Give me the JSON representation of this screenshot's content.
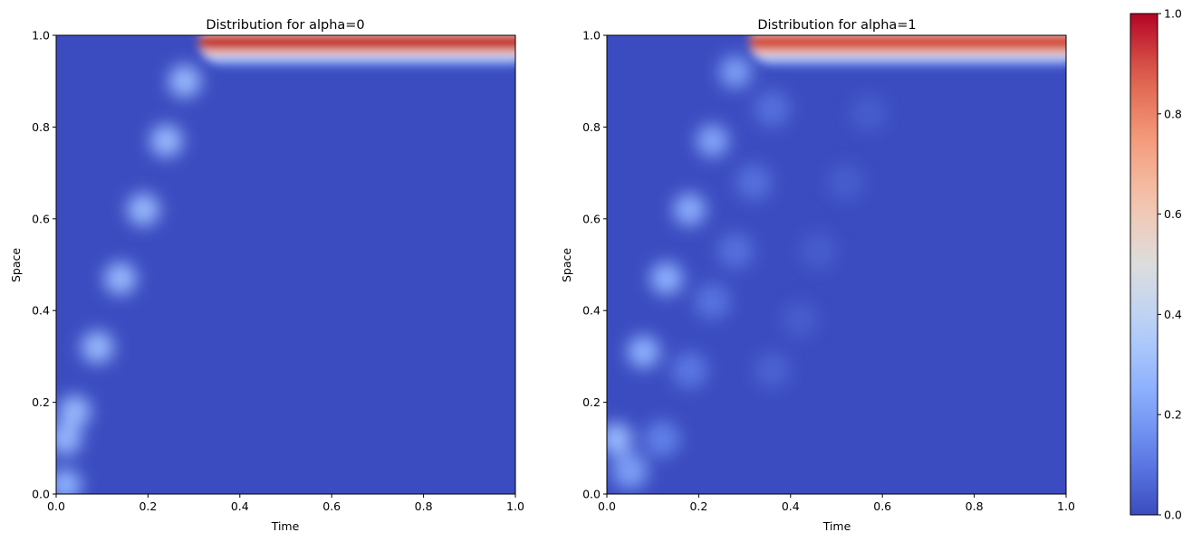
{
  "chart_data": [
    {
      "type": "heatmap",
      "title": "Distribution for alpha=0",
      "xlabel": "Time",
      "ylabel": "Space",
      "xlim": [
        0.0,
        1.0
      ],
      "ylim": [
        0.0,
        1.0
      ],
      "xticks": [
        "0.0",
        "0.2",
        "0.4",
        "0.6",
        "0.8",
        "1.0"
      ],
      "yticks": [
        "0.0",
        "0.2",
        "0.4",
        "0.6",
        "0.8",
        "1.0"
      ],
      "colormap": "coolwarm",
      "vmin": 0.0,
      "vmax": 1.0,
      "grid": false,
      "ridge_points": [
        {
          "x": 0.02,
          "y": 0.02,
          "value": 0.25
        },
        {
          "x": 0.02,
          "y": 0.12,
          "value": 0.27
        },
        {
          "x": 0.04,
          "y": 0.18,
          "value": 0.28
        },
        {
          "x": 0.09,
          "y": 0.32,
          "value": 0.28
        },
        {
          "x": 0.14,
          "y": 0.47,
          "value": 0.28
        },
        {
          "x": 0.19,
          "y": 0.62,
          "value": 0.28
        },
        {
          "x": 0.24,
          "y": 0.77,
          "value": 0.28
        },
        {
          "x": 0.28,
          "y": 0.9,
          "value": 0.28
        }
      ],
      "top_band": {
        "x_start": 0.31,
        "x_end": 1.0,
        "y_center": 0.985,
        "peak_value": 1.0
      }
    },
    {
      "type": "heatmap",
      "title": "Distribution for alpha=1",
      "xlabel": "Time",
      "ylabel": "Space",
      "xlim": [
        0.0,
        1.0
      ],
      "ylim": [
        0.0,
        1.0
      ],
      "xticks": [
        "0.0",
        "0.2",
        "0.4",
        "0.6",
        "0.8",
        "1.0"
      ],
      "yticks": [
        "0.0",
        "0.2",
        "0.4",
        "0.6",
        "0.8",
        "1.0"
      ],
      "colormap": "coolwarm",
      "vmin": 0.0,
      "vmax": 1.0,
      "grid": false,
      "ridge_points": [
        {
          "x": 0.02,
          "y": 0.12,
          "value": 0.28
        },
        {
          "x": 0.08,
          "y": 0.31,
          "value": 0.25
        },
        {
          "x": 0.13,
          "y": 0.47,
          "value": 0.25
        },
        {
          "x": 0.18,
          "y": 0.62,
          "value": 0.24
        },
        {
          "x": 0.23,
          "y": 0.77,
          "value": 0.22
        },
        {
          "x": 0.28,
          "y": 0.92,
          "value": 0.2
        }
      ],
      "faint_points": [
        {
          "x": 0.05,
          "y": 0.05,
          "value": 0.2
        },
        {
          "x": 0.12,
          "y": 0.12,
          "value": 0.12
        },
        {
          "x": 0.18,
          "y": 0.27,
          "value": 0.1
        },
        {
          "x": 0.23,
          "y": 0.42,
          "value": 0.09
        },
        {
          "x": 0.28,
          "y": 0.53,
          "value": 0.08
        },
        {
          "x": 0.32,
          "y": 0.68,
          "value": 0.08
        },
        {
          "x": 0.36,
          "y": 0.84,
          "value": 0.08
        },
        {
          "x": 0.36,
          "y": 0.27,
          "value": 0.05
        },
        {
          "x": 0.42,
          "y": 0.38,
          "value": 0.04
        },
        {
          "x": 0.46,
          "y": 0.53,
          "value": 0.04
        },
        {
          "x": 0.52,
          "y": 0.68,
          "value": 0.04
        },
        {
          "x": 0.57,
          "y": 0.83,
          "value": 0.04
        }
      ],
      "top_band": {
        "x_start": 0.31,
        "x_end": 1.0,
        "y_center": 0.985,
        "peak_value": 0.95
      }
    }
  ],
  "colorbar": {
    "vmin": 0.0,
    "vmax": 1.0,
    "ticks": [
      "0.0",
      "0.2",
      "0.4",
      "0.6",
      "0.8",
      "1.0"
    ]
  }
}
